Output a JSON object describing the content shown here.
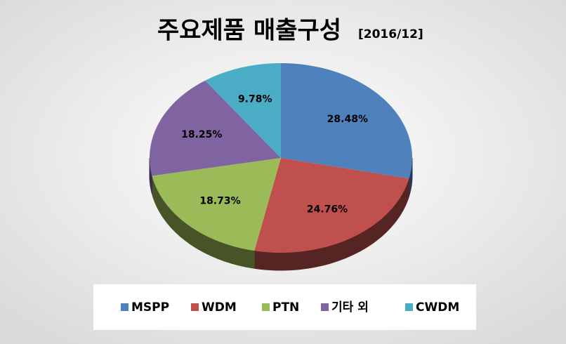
{
  "chart_data": {
    "type": "pie",
    "title": "주요제품 매출구성",
    "subtitle": "[2016/12]",
    "categories": [
      "MSPP",
      "WDM",
      "PTN",
      "기타 외",
      "CWDM"
    ],
    "values": [
      28.48,
      24.76,
      18.73,
      18.25,
      9.78
    ],
    "value_labels": [
      "28.48%",
      "24.76%",
      "18.73%",
      "18.25%",
      "9.78%"
    ],
    "colors": [
      "#4f81bd",
      "#c0504d",
      "#9bbb59",
      "#8064a2",
      "#4bacc6"
    ],
    "legend": "bottom"
  }
}
